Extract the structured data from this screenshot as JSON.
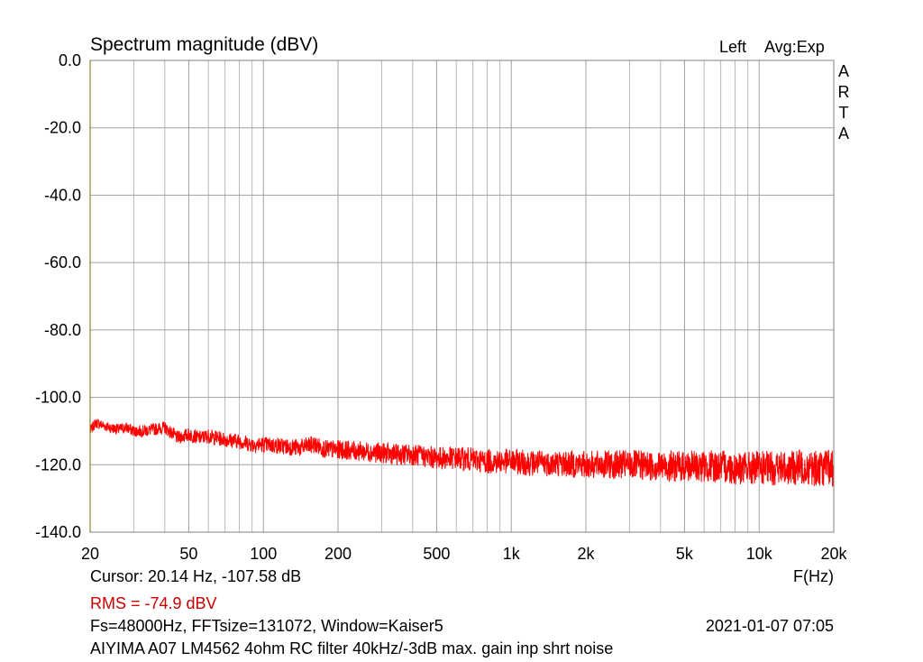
{
  "chart_data": {
    "type": "line",
    "title": "Spectrum magnitude (dBV)",
    "channel_label": "Left",
    "averaging_label": "Avg:Exp",
    "brand_letters": [
      "A",
      "R",
      "T",
      "A"
    ],
    "xlabel": "F(Hz)",
    "x_scale": "log",
    "xlim": [
      20,
      20000
    ],
    "ylim": [
      -140,
      0
    ],
    "grid": true,
    "y_ticks": [
      {
        "value": 0,
        "label": "0.0"
      },
      {
        "value": -20,
        "label": "-20.0"
      },
      {
        "value": -40,
        "label": "-40.0"
      },
      {
        "value": -60,
        "label": "-60.0"
      },
      {
        "value": -80,
        "label": "-80.0"
      },
      {
        "value": -100,
        "label": "-100.0"
      },
      {
        "value": -120,
        "label": "-120.0"
      },
      {
        "value": -140,
        "label": "-140.0"
      }
    ],
    "x_ticks": [
      {
        "value": 20,
        "label": "20"
      },
      {
        "value": 50,
        "label": "50"
      },
      {
        "value": 100,
        "label": "100"
      },
      {
        "value": 200,
        "label": "200"
      },
      {
        "value": 500,
        "label": "500"
      },
      {
        "value": 1000,
        "label": "1k"
      },
      {
        "value": 2000,
        "label": "2k"
      },
      {
        "value": 5000,
        "label": "5k"
      },
      {
        "value": 10000,
        "label": "10k"
      },
      {
        "value": 20000,
        "label": "20k"
      }
    ],
    "x_minor_gridlines": [
      30,
      40,
      60,
      70,
      80,
      90,
      300,
      400,
      600,
      700,
      800,
      900,
      3000,
      4000,
      6000,
      7000,
      8000,
      9000
    ],
    "series": [
      {
        "color": "#ff0000",
        "x": [
          20,
          21,
          22,
          24,
          26,
          28,
          30,
          33,
          36,
          40,
          45,
          50,
          55,
          60,
          70,
          80,
          90,
          100,
          120,
          140,
          160,
          180,
          200,
          250,
          300,
          350,
          400,
          500,
          600,
          700,
          800,
          1000,
          1200,
          1500,
          2000,
          2500,
          3000,
          4000,
          5000,
          6000,
          7000,
          8000,
          10000,
          12000,
          14000,
          15000,
          16000,
          18000,
          20000
        ],
        "y": [
          -110,
          -107.6,
          -108,
          -109,
          -109.5,
          -109,
          -110,
          -110,
          -109.5,
          -109,
          -112,
          -111,
          -112,
          -111.5,
          -112.5,
          -113,
          -114,
          -114,
          -114.5,
          -115,
          -114,
          -115.5,
          -115.5,
          -116,
          -116.5,
          -117,
          -117,
          -118,
          -118,
          -118.5,
          -119,
          -119,
          -119.5,
          -119.5,
          -120,
          -120,
          -120,
          -120.5,
          -120.5,
          -120.5,
          -120.5,
          -121,
          -121,
          -121,
          -121,
          -120.5,
          -121,
          -121,
          -121
        ]
      }
    ]
  },
  "footer": {
    "cursor": "Cursor: 20.14 Hz, -107.58 dB",
    "rms": "RMS =  -74.9 dBV",
    "rms_color": "#cc0000",
    "fft_info": "Fs=48000Hz, FFTsize=131072, Window=Kaiser5",
    "datetime": "2021-01-07  07:05",
    "description": "AIYIMA A07 LM4562 4ohm RC filter 40kHz/-3dB max. gain inp shrt noise"
  }
}
